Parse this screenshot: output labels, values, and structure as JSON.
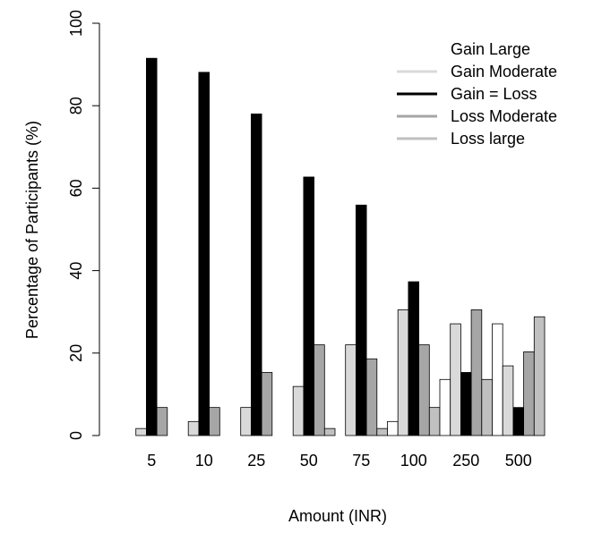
{
  "chart_data": {
    "type": "bar",
    "title": "",
    "xlabel": "Amount (INR)",
    "ylabel": "Percentage of Participants (%)",
    "ylim": [
      0,
      100
    ],
    "yticks": [
      0,
      20,
      40,
      60,
      80,
      100
    ],
    "grid": false,
    "legend_position": "top-right",
    "categories": [
      "5",
      "10",
      "25",
      "50",
      "75",
      "100",
      "250",
      "500"
    ],
    "series": [
      {
        "name": "Gain Large",
        "color": "#ffffff",
        "values": [
          0,
          0,
          0,
          0,
          0,
          3.4,
          13.6,
          27.1
        ]
      },
      {
        "name": "Gain Moderate",
        "color": "#d9d9d9",
        "values": [
          1.7,
          3.4,
          6.8,
          11.9,
          22.0,
          30.5,
          27.1,
          16.9
        ]
      },
      {
        "name": "Gain = Loss",
        "color": "#000000",
        "values": [
          91.5,
          88.1,
          78.0,
          62.7,
          55.9,
          37.3,
          15.3,
          6.8
        ]
      },
      {
        "name": "Loss Moderate",
        "color": "#a6a6a6",
        "values": [
          6.8,
          6.8,
          15.3,
          22.0,
          18.6,
          22.0,
          30.5,
          20.3
        ]
      },
      {
        "name": "Loss large",
        "color": "#c0c0c0",
        "values": [
          0,
          0,
          0,
          1.7,
          1.7,
          6.8,
          13.6,
          28.8
        ]
      }
    ]
  }
}
